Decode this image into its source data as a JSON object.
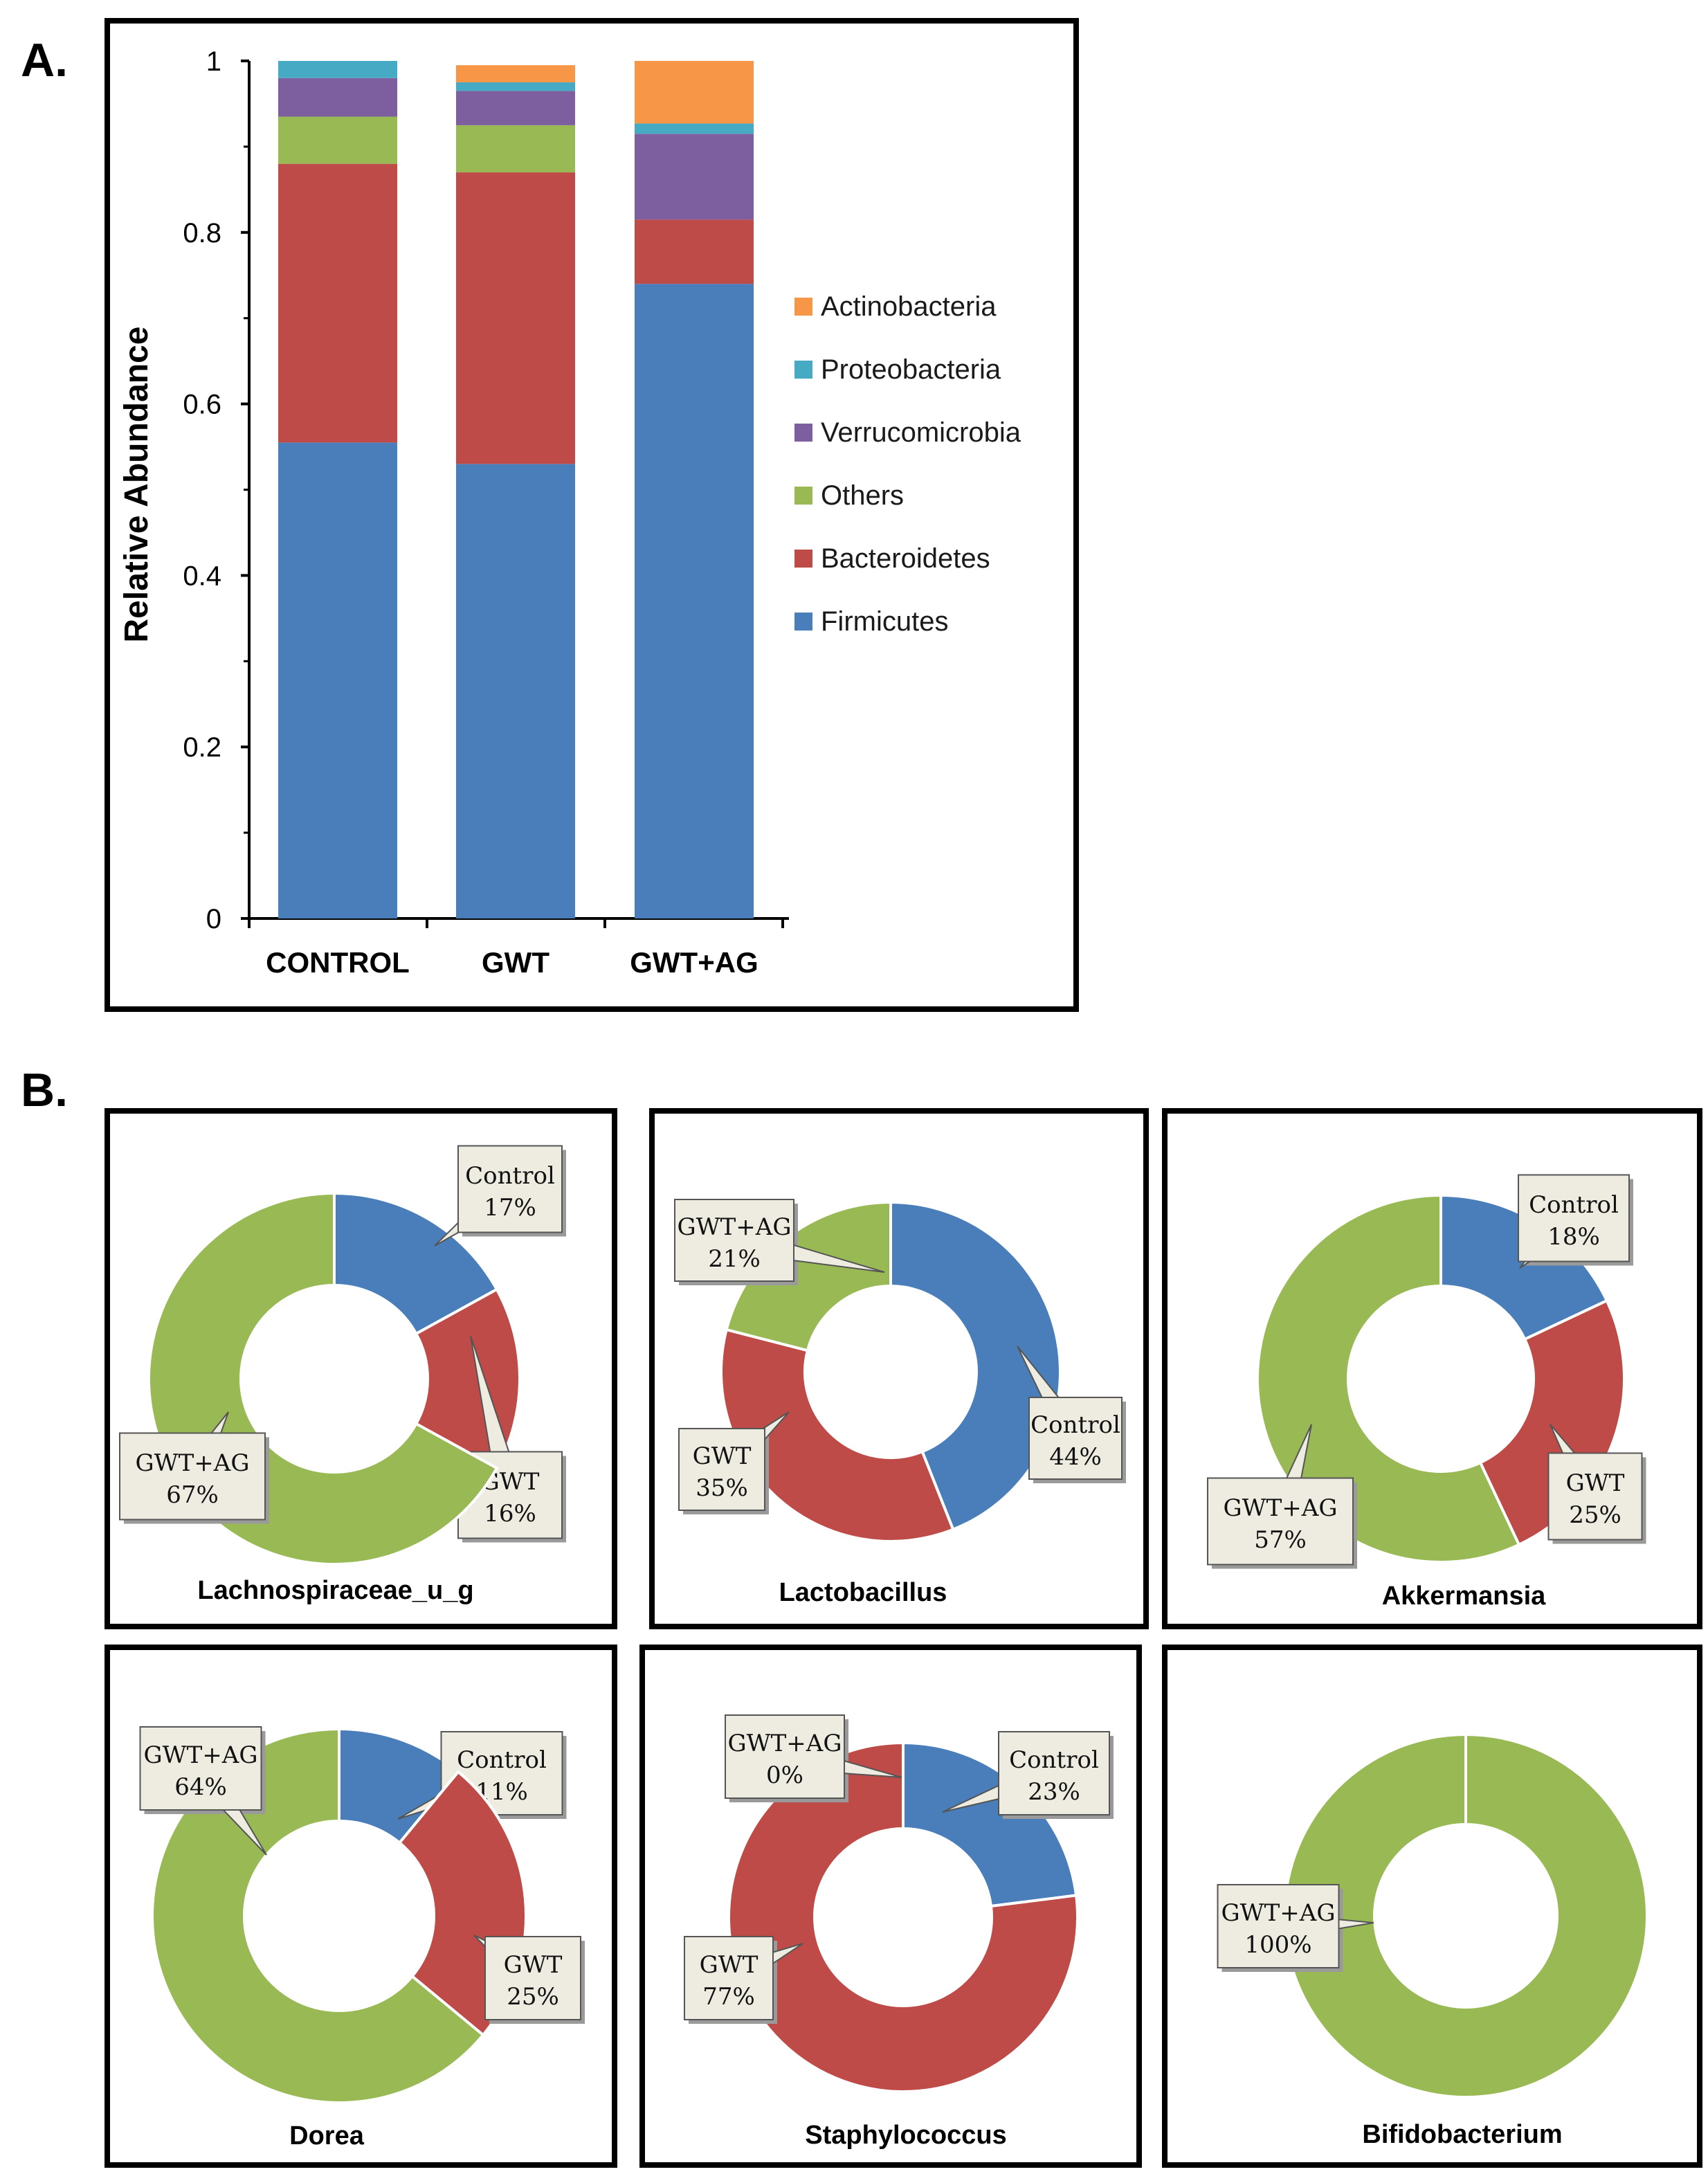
{
  "panel_labels": {
    "a": "A.",
    "b": "B."
  },
  "colors": {
    "Firmicutes": "#4A7EBB",
    "Bacteroidetes": "#BE4B48",
    "Others": "#98B954",
    "Verrucomicrobia": "#7D5FA0",
    "Proteobacteria": "#46AAC5",
    "Actinobacteria": "#F79646",
    "Control": "#4A7EBB",
    "GWT": "#BE4B48",
    "GWT+AG": "#98B954"
  },
  "chart_data": [
    {
      "type": "bar",
      "stacked": true,
      "title": "",
      "xlabel": "",
      "ylabel": "Relative Abundance",
      "ylim": [
        0,
        1
      ],
      "yticks": [
        "0",
        "0.2",
        "0.4",
        "0.6",
        "0.8",
        "1"
      ],
      "categories": [
        "CONTROL",
        "GWT",
        "GWT+AG"
      ],
      "series": [
        {
          "name": "Firmicutes",
          "values": [
            0.555,
            0.53,
            0.74
          ]
        },
        {
          "name": "Bacteroidetes",
          "values": [
            0.325,
            0.34,
            0.075
          ]
        },
        {
          "name": "Others",
          "values": [
            0.055,
            0.055,
            0.0
          ]
        },
        {
          "name": "Verrucomicrobia",
          "values": [
            0.045,
            0.04,
            0.1
          ]
        },
        {
          "name": "Proteobacteria",
          "values": [
            0.02,
            0.01,
            0.012
          ]
        },
        {
          "name": "Actinobacteria",
          "values": [
            0.0,
            0.02,
            0.073
          ]
        }
      ],
      "legend": [
        "Actinobacteria",
        "Proteobacteria",
        "Verrucomicrobia",
        "Others",
        "Bacteroidetes",
        "Firmicutes"
      ],
      "legend_position": "right"
    },
    {
      "type": "pie",
      "variant": "donut",
      "title": "Lachnospiraceae_u_g",
      "slices": [
        {
          "name": "Control",
          "value": 17,
          "label": "17%"
        },
        {
          "name": "GWT",
          "value": 16,
          "label": "16%"
        },
        {
          "name": "GWT+AG",
          "value": 67,
          "label": "67%"
        }
      ]
    },
    {
      "type": "pie",
      "variant": "donut",
      "title": "Lactobacillus",
      "slices": [
        {
          "name": "Control",
          "value": 44,
          "label": "44%"
        },
        {
          "name": "GWT",
          "value": 35,
          "label": "35%"
        },
        {
          "name": "GWT+AG",
          "value": 21,
          "label": "21%"
        }
      ]
    },
    {
      "type": "pie",
      "variant": "donut",
      "title": "Akkermansia",
      "slices": [
        {
          "name": "Control",
          "value": 18,
          "label": "18%"
        },
        {
          "name": "GWT",
          "value": 25,
          "label": "25%"
        },
        {
          "name": "GWT+AG",
          "value": 57,
          "label": "57%"
        }
      ]
    },
    {
      "type": "pie",
      "variant": "donut",
      "title": "Dorea",
      "slices": [
        {
          "name": "Control",
          "value": 11,
          "label": "11%"
        },
        {
          "name": "GWT",
          "value": 25,
          "label": "25%"
        },
        {
          "name": "GWT+AG",
          "value": 64,
          "label": "64%"
        }
      ]
    },
    {
      "type": "pie",
      "variant": "donut",
      "title": "Staphylococcus",
      "slices": [
        {
          "name": "Control",
          "value": 23,
          "label": "23%"
        },
        {
          "name": "GWT",
          "value": 77,
          "label": "77%"
        },
        {
          "name": "GWT+AG",
          "value": 0,
          "label": "0%"
        }
      ]
    },
    {
      "type": "pie",
      "variant": "donut",
      "title": "Bifidobacterium",
      "slices": [
        {
          "name": "GWT+AG",
          "value": 100,
          "label": "100%"
        }
      ]
    }
  ]
}
